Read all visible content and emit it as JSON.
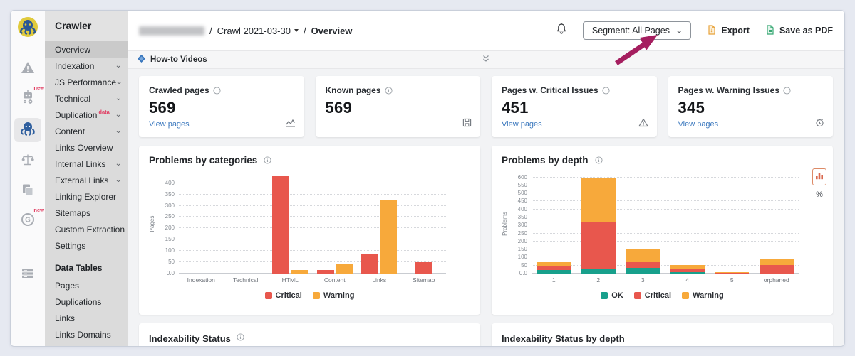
{
  "colors": {
    "critical": "#E8574D",
    "warning": "#F7A93B",
    "ok": "#18A08C",
    "link_blue": "#3B78BE",
    "badge_red": "#E0385E",
    "annotation_arrow": "#A51E5F"
  },
  "sidebar": {
    "title": "Crawler",
    "badge_new": "new",
    "items": [
      {
        "label": "Overview",
        "selected": true,
        "expandable": false,
        "badge": ""
      },
      {
        "label": "Indexation",
        "selected": false,
        "expandable": true,
        "badge": ""
      },
      {
        "label": "JS Performance",
        "selected": false,
        "expandable": true,
        "badge": ""
      },
      {
        "label": "Technical",
        "selected": false,
        "expandable": true,
        "badge": ""
      },
      {
        "label": "Duplication",
        "selected": false,
        "expandable": true,
        "badge": "data"
      },
      {
        "label": "Content",
        "selected": false,
        "expandable": true,
        "badge": ""
      },
      {
        "label": "Links Overview",
        "selected": false,
        "expandable": false,
        "badge": ""
      },
      {
        "label": "Internal Links",
        "selected": false,
        "expandable": true,
        "badge": ""
      },
      {
        "label": "External Links",
        "selected": false,
        "expandable": true,
        "badge": ""
      },
      {
        "label": "Linking Explorer",
        "selected": false,
        "expandable": false,
        "badge": ""
      },
      {
        "label": "Sitemaps",
        "selected": false,
        "expandable": false,
        "badge": ""
      },
      {
        "label": "Custom Extraction",
        "selected": false,
        "expandable": false,
        "badge": ""
      },
      {
        "label": "Settings",
        "selected": false,
        "expandable": false,
        "badge": ""
      }
    ],
    "section_title": "Data Tables",
    "table_items": [
      "Pages",
      "Duplications",
      "Links",
      "Links Domains"
    ]
  },
  "header": {
    "crawl_label": "Crawl 2021-03-30",
    "separator": "/",
    "page_label": "Overview",
    "segment_label": "Segment: All Pages",
    "export_label": "Export",
    "save_pdf_label": "Save as PDF"
  },
  "howto": {
    "label": "How-to Videos"
  },
  "cards": [
    {
      "title": "Crawled pages",
      "value": "569",
      "link": "View pages",
      "icon": "line-chart-icon"
    },
    {
      "title": "Known pages",
      "value": "569",
      "link": "",
      "icon": "disk-icon"
    },
    {
      "title": "Pages w. Critical Issues",
      "value": "451",
      "link": "View pages",
      "icon": "warning-triangle-icon"
    },
    {
      "title": "Pages w. Warning Issues",
      "value": "345",
      "link": "View pages",
      "icon": "alarm-clock-icon"
    }
  ],
  "chart_data": [
    {
      "type": "bar",
      "title": "Problems by categories",
      "ylabel": "Pages",
      "categories": [
        "Indexation",
        "Technical",
        "HTML",
        "Content",
        "Links",
        "Sitemap"
      ],
      "series": [
        {
          "name": "Critical",
          "color": "#E8574D",
          "values": [
            0,
            0,
            430,
            15,
            85,
            50
          ]
        },
        {
          "name": "Warning",
          "color": "#F7A93B",
          "values": [
            0,
            0,
            15,
            45,
            325,
            0
          ]
        }
      ],
      "ytick_labels": [
        "0.0",
        "50",
        "100",
        "150",
        "200",
        "250",
        "300",
        "350",
        "400"
      ],
      "ytick_values": [
        0,
        50,
        100,
        150,
        200,
        250,
        300,
        350,
        400
      ],
      "ylim": [
        0,
        440
      ],
      "grid": "dotted",
      "legend_position": "bottom"
    },
    {
      "type": "stacked-bar",
      "title": "Problems by depth",
      "ylabel": "Problems",
      "categories": [
        "1",
        "2",
        "3",
        "4",
        "5",
        "orphaned"
      ],
      "series": [
        {
          "name": "OK",
          "color": "#18A08C",
          "values": [
            20,
            25,
            35,
            8,
            0,
            0
          ]
        },
        {
          "name": "Critical",
          "color": "#E8574D",
          "values": [
            25,
            295,
            35,
            17,
            4,
            55
          ]
        },
        {
          "name": "Warning",
          "color": "#F7A93B",
          "values": [
            20,
            275,
            85,
            25,
            6,
            35
          ]
        }
      ],
      "ytick_labels": [
        "0.0",
        "50",
        "100",
        "150",
        "200",
        "250",
        "300",
        "350",
        "400",
        "450",
        "500",
        "550",
        "600"
      ],
      "ytick_values": [
        0,
        50,
        100,
        150,
        200,
        250,
        300,
        350,
        400,
        450,
        500,
        550,
        600
      ],
      "ylim": [
        0,
        620
      ],
      "grid": "dotted",
      "legend_position": "bottom",
      "controls": {
        "percent_label": "%"
      }
    }
  ],
  "bottom_cards": [
    {
      "title": "Indexability Status",
      "info": true
    },
    {
      "title": "Indexability Status by depth",
      "info": false
    }
  ]
}
